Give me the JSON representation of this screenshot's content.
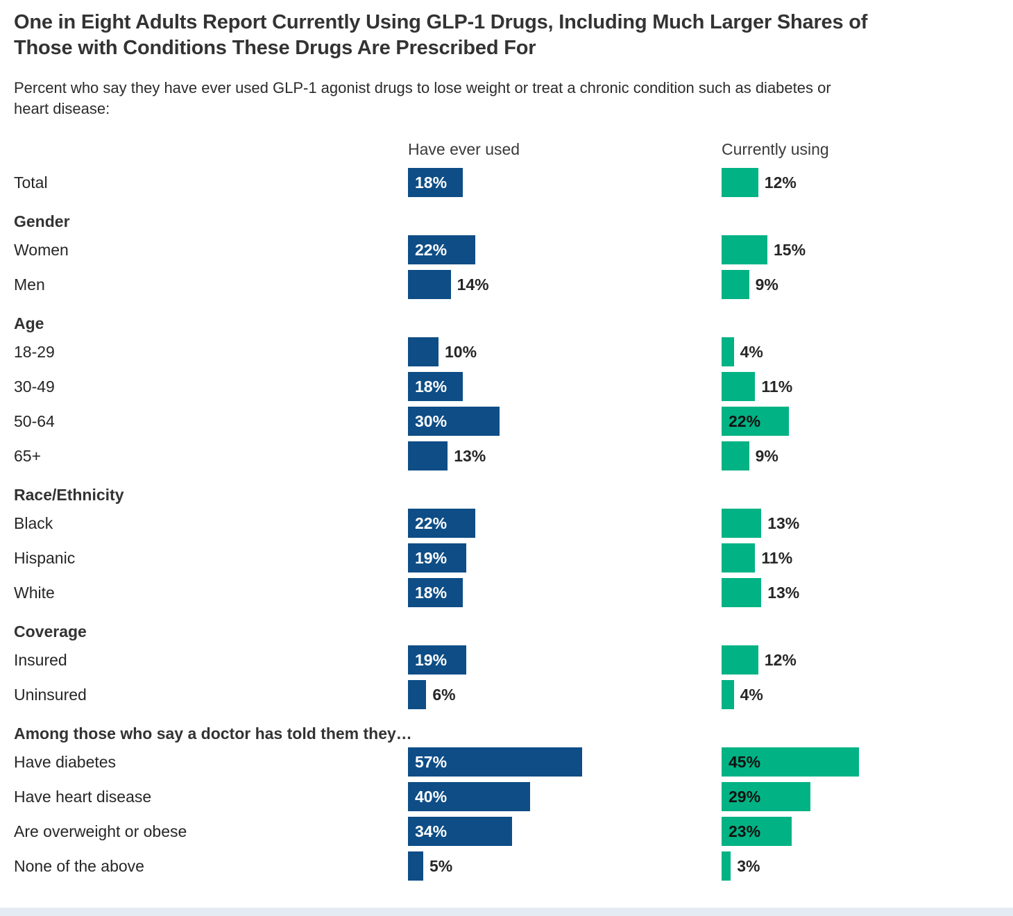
{
  "page": {
    "title_lines": [
      "One in Eight Adults Report Currently Using GLP-1 Drugs, Including Much Larger Shares of",
      "Those with Conditions These Drugs Are Prescribed For"
    ],
    "subtitle_lines": [
      "Percent who say they have ever used GLP-1 agonist drugs to lose weight or treat a chronic condition such as diabetes or",
      "heart disease:"
    ],
    "footer_strip_color": "#e4ebf3"
  },
  "chart_data": {
    "type": "bar",
    "orientation": "horizontal",
    "value_suffix": "%",
    "xlim": [
      0,
      60
    ],
    "grid": false,
    "legend_position": "column-headers",
    "columns": [
      {
        "key": "ever",
        "label": "Have ever used",
        "color": "#0e4d86",
        "inside_label_color": "#ffffff"
      },
      {
        "key": "current",
        "label": "Currently using",
        "color": "#00b284",
        "inside_label_color": "#111111"
      }
    ],
    "rows": [
      {
        "type": "bar",
        "label": "Total",
        "ever": 18,
        "current": 12
      },
      {
        "type": "section",
        "label": "Gender"
      },
      {
        "type": "bar",
        "label": "Women",
        "ever": 22,
        "current": 15
      },
      {
        "type": "bar",
        "label": "Men",
        "ever": 14,
        "current": 9
      },
      {
        "type": "section",
        "label": "Age"
      },
      {
        "type": "bar",
        "label": "18-29",
        "ever": 10,
        "current": 4
      },
      {
        "type": "bar",
        "label": "30-49",
        "ever": 18,
        "current": 11
      },
      {
        "type": "bar",
        "label": "50-64",
        "ever": 30,
        "current": 22
      },
      {
        "type": "bar",
        "label": "65+",
        "ever": 13,
        "current": 9
      },
      {
        "type": "section",
        "label": "Race/Ethnicity"
      },
      {
        "type": "bar",
        "label": "Black",
        "ever": 22,
        "current": 13
      },
      {
        "type": "bar",
        "label": "Hispanic",
        "ever": 19,
        "current": 11
      },
      {
        "type": "bar",
        "label": "White",
        "ever": 18,
        "current": 13
      },
      {
        "type": "section",
        "label": "Coverage"
      },
      {
        "type": "bar",
        "label": "Insured",
        "ever": 19,
        "current": 12
      },
      {
        "type": "bar",
        "label": "Uninsured",
        "ever": 6,
        "current": 4
      },
      {
        "type": "section",
        "label": "Among those who say a doctor has told them they…"
      },
      {
        "type": "bar",
        "label": "Have diabetes",
        "ever": 57,
        "current": 45
      },
      {
        "type": "bar",
        "label": "Have heart disease",
        "ever": 40,
        "current": 29
      },
      {
        "type": "bar",
        "label": "Are overweight or obese",
        "ever": 34,
        "current": 23
      },
      {
        "type": "bar",
        "label": "None of the above",
        "ever": 5,
        "current": 3
      }
    ]
  }
}
